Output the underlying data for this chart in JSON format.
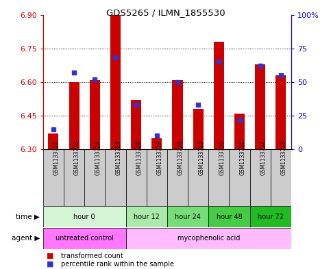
{
  "title": "GDS5265 / ILMN_1855530",
  "samples": [
    "GSM1133722",
    "GSM1133723",
    "GSM1133724",
    "GSM1133725",
    "GSM1133726",
    "GSM1133727",
    "GSM1133728",
    "GSM1133729",
    "GSM1133730",
    "GSM1133731",
    "GSM1133732",
    "GSM1133733"
  ],
  "transformed_count": [
    6.37,
    6.6,
    6.61,
    6.9,
    6.52,
    6.35,
    6.61,
    6.48,
    6.78,
    6.46,
    6.68,
    6.63
  ],
  "percentile_rank": [
    15,
    57,
    52,
    68,
    33,
    10,
    50,
    33,
    65,
    22,
    62,
    55
  ],
  "ylim_left": [
    6.3,
    6.9
  ],
  "ylim_right": [
    0,
    100
  ],
  "yticks_left": [
    6.3,
    6.45,
    6.6,
    6.75,
    6.9
  ],
  "yticks_right": [
    0,
    25,
    50,
    75,
    100
  ],
  "bar_color": "#cc0000",
  "blue_color": "#3333cc",
  "baseline": 6.3,
  "time_groups": [
    {
      "label": "hour 0",
      "start": 0,
      "end": 4,
      "color": "#d6f5d6"
    },
    {
      "label": "hour 12",
      "start": 4,
      "end": 6,
      "color": "#aaeaaa"
    },
    {
      "label": "hour 24",
      "start": 6,
      "end": 8,
      "color": "#77dd77"
    },
    {
      "label": "hour 48",
      "start": 8,
      "end": 10,
      "color": "#44cc44"
    },
    {
      "label": "hour 72",
      "start": 10,
      "end": 12,
      "color": "#22bb22"
    }
  ],
  "agent_groups": [
    {
      "label": "untreated control",
      "start": 0,
      "end": 4,
      "color": "#ff77ff"
    },
    {
      "label": "mycophenolic acid",
      "start": 4,
      "end": 12,
      "color": "#ffbbff"
    }
  ],
  "left_axis_color": "#cc0000",
  "right_axis_color": "#0000cc",
  "grid_dotted_at": [
    6.45,
    6.6,
    6.75
  ],
  "sample_box_color": "#cccccc",
  "legend": [
    {
      "color": "#cc0000",
      "label": "transformed count"
    },
    {
      "color": "#3333cc",
      "label": "percentile rank within the sample"
    }
  ]
}
